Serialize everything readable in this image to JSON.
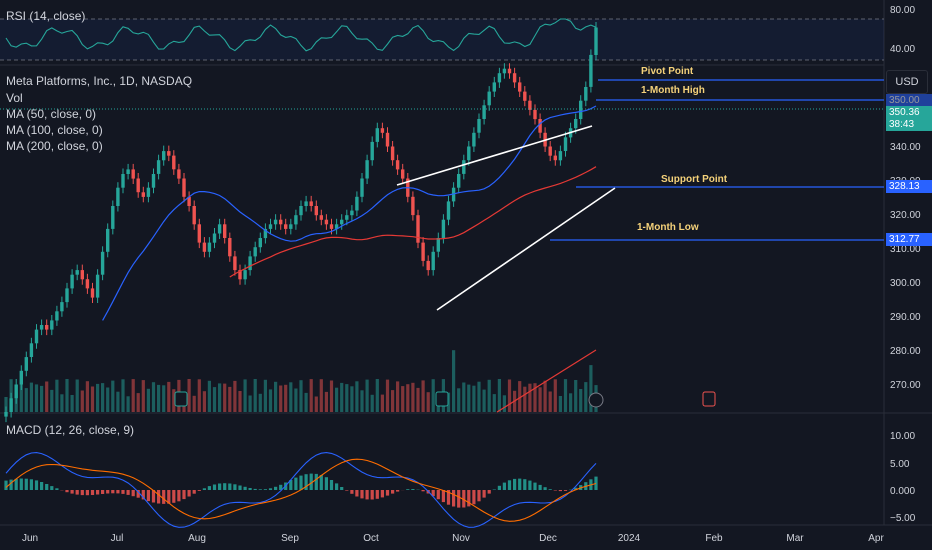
{
  "rsi": {
    "label": "RSI (14, close)",
    "ticks": [
      "80.00",
      "40.00"
    ]
  },
  "main": {
    "title": "Meta Platforms, Inc., 1D, NASDAQ",
    "indicators": [
      "Vol",
      "MA (50, close, 0)",
      "MA (100, close, 0)",
      "MA (200, close, 0)"
    ]
  },
  "price_ticks": [
    "340.00",
    "330.00",
    "320.00",
    "310.00",
    "300.00",
    "290.00",
    "280.00",
    "270.00"
  ],
  "price_tags": {
    "top1": "350.00",
    "last": "350.36",
    "countdown": "38:43",
    "support": "328.13",
    "low": "312.77"
  },
  "annotations": {
    "pivot": "Pivot Point",
    "high": "1-Month High",
    "support": "Support Point",
    "low": "1-Month Low"
  },
  "currency": "USD",
  "macd": {
    "label": "MACD (12, 26, close, 9)",
    "ticks": [
      "10.00",
      "5.00",
      "0.000",
      "−5.00"
    ]
  },
  "x_ticks": [
    "Jun",
    "Jul",
    "Aug",
    "Sep",
    "Oct",
    "Nov",
    "Dec",
    "2024",
    "Feb",
    "Mar",
    "Apr"
  ],
  "colors": {
    "up": "#26a69a",
    "down": "#ef5350",
    "ma50": "#2962ff",
    "ma100": "#e53935",
    "rsi": "#26a69a",
    "macd": "#2962ff",
    "signal": "#ff6d00",
    "levels": "#2962ff"
  },
  "chart_data": {
    "type": "candlestick",
    "title": "Meta Platforms, Inc., 1D, NASDAQ",
    "y_range": [
      265,
      355
    ],
    "levels": {
      "pivot": 350.0,
      "high": 347.5,
      "support": 328.13,
      "low": 312.77
    },
    "close_series": [
      265,
      268,
      271,
      274,
      277,
      280,
      283,
      284,
      283,
      285,
      287,
      289,
      292,
      295,
      296,
      294,
      292,
      290,
      295,
      300,
      305,
      310,
      314,
      317,
      318,
      316,
      313,
      312,
      314,
      317,
      320,
      322,
      321,
      318,
      316,
      312,
      310,
      306,
      302,
      300,
      302,
      304,
      306,
      303,
      299,
      296,
      294,
      296,
      299,
      301,
      303,
      305,
      306,
      307,
      306,
      305,
      306,
      308,
      310,
      311,
      310,
      308,
      307,
      306,
      305,
      306,
      307,
      308,
      309,
      312,
      316,
      320,
      324,
      327,
      326,
      323,
      320,
      318,
      316,
      312,
      308,
      302,
      298,
      296,
      300,
      303,
      307,
      311,
      314,
      317,
      320,
      323,
      326,
      329,
      332,
      335,
      337,
      339,
      340,
      339,
      337,
      335,
      333,
      331,
      329,
      326,
      323,
      321,
      320,
      322,
      325,
      327,
      329,
      333,
      336,
      343,
      349
    ]
  }
}
